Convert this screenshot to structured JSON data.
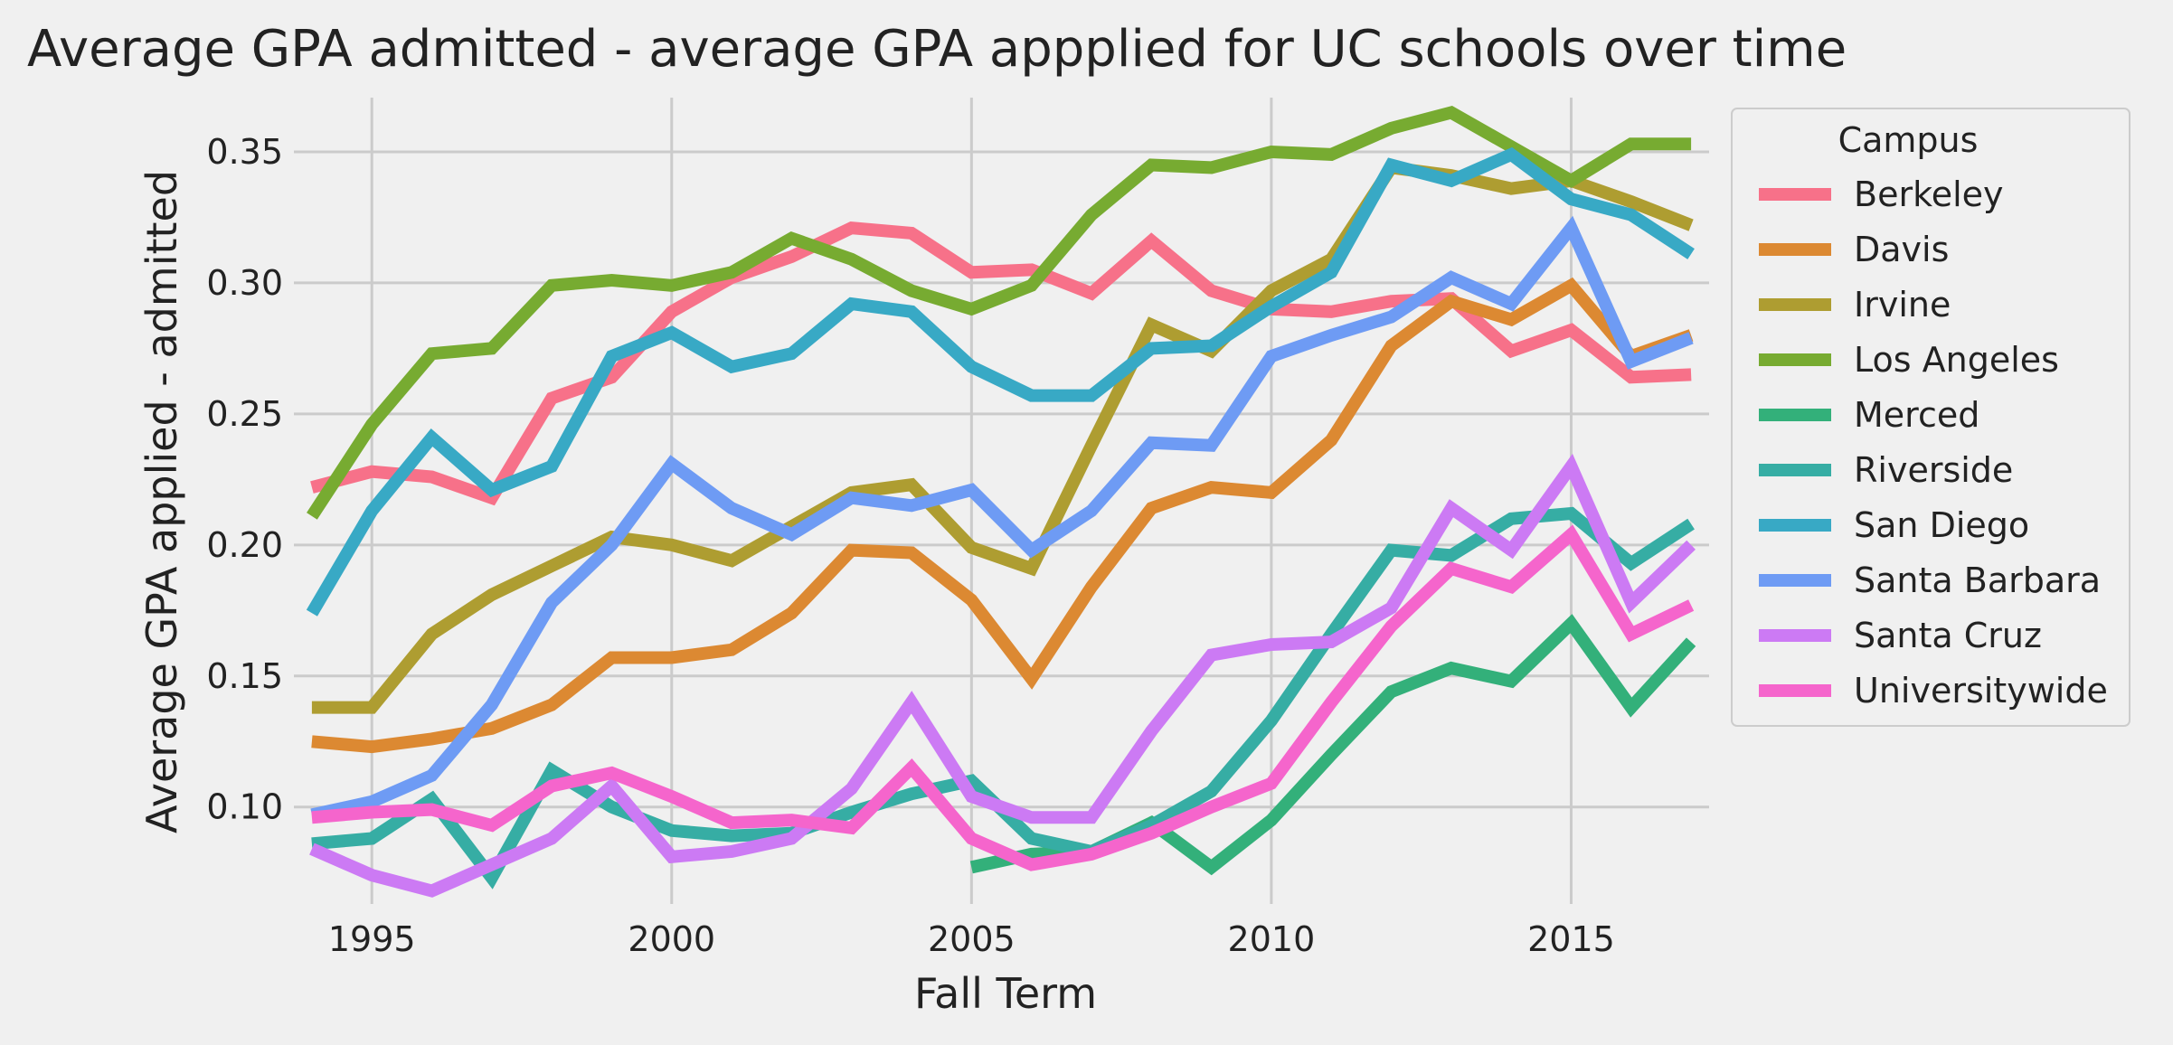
{
  "chart_data": {
    "type": "line",
    "title": "Average GPA admitted - average GPA appplied for UC schools over time",
    "xlabel": "Fall Term",
    "ylabel": "Average GPA applied - admitted",
    "xlim": [
      1993.7,
      2017.3
    ],
    "ylim": [
      0.063,
      0.37
    ],
    "x_ticks": [
      1995,
      2000,
      2005,
      2010,
      2015
    ],
    "y_ticks": [
      0.1,
      0.15,
      0.2,
      0.25,
      0.3,
      0.35
    ],
    "x_tick_labels": [
      "1995",
      "2000",
      "2005",
      "2010",
      "2015"
    ],
    "y_tick_labels": [
      "0.10",
      "0.15",
      "0.20",
      "0.25",
      "0.30",
      "0.35"
    ],
    "grid": true,
    "legend_title": "Campus",
    "legend_position": "outside-right",
    "x": [
      1994,
      1995,
      1996,
      1997,
      1998,
      1999,
      2000,
      2001,
      2002,
      2003,
      2004,
      2005,
      2006,
      2007,
      2008,
      2009,
      2010,
      2011,
      2012,
      2013,
      2014,
      2015,
      2016,
      2017
    ],
    "series": [
      {
        "name": "Berkeley",
        "color": "#f77189",
        "values": [
          0.222,
          0.228,
          0.226,
          0.218,
          0.256,
          0.264,
          0.289,
          0.302,
          0.31,
          0.321,
          0.319,
          0.304,
          0.305,
          0.296,
          0.316,
          0.297,
          0.29,
          0.289,
          0.293,
          0.294,
          0.274,
          0.282,
          0.264,
          0.265
        ]
      },
      {
        "name": "Davis",
        "color": "#dc8932",
        "values": [
          0.125,
          0.123,
          0.126,
          0.13,
          0.139,
          0.157,
          0.157,
          0.16,
          0.174,
          0.198,
          0.197,
          0.179,
          0.149,
          0.184,
          0.214,
          0.222,
          0.22,
          0.24,
          0.276,
          0.293,
          0.286,
          0.299,
          0.272,
          0.28
        ]
      },
      {
        "name": "Irvine",
        "color": "#ae9d31",
        "values": [
          0.138,
          0.138,
          0.166,
          0.181,
          0.192,
          0.203,
          0.2,
          0.194,
          0.207,
          0.22,
          0.223,
          0.199,
          0.191,
          0.238,
          0.284,
          0.274,
          0.297,
          0.309,
          0.344,
          0.341,
          0.336,
          0.339,
          0.331,
          0.322
        ]
      },
      {
        "name": "Los Angeles",
        "color": "#77ab31",
        "values": [
          0.211,
          0.246,
          0.273,
          0.275,
          0.299,
          0.301,
          0.299,
          0.304,
          0.317,
          0.309,
          0.297,
          0.29,
          0.299,
          0.326,
          0.345,
          0.344,
          0.35,
          0.349,
          0.359,
          0.365,
          0.352,
          0.339,
          0.353,
          0.353
        ]
      },
      {
        "name": "Merced",
        "color": "#33b07a",
        "values": [
          null,
          null,
          null,
          null,
          null,
          null,
          null,
          null,
          null,
          null,
          null,
          0.077,
          0.082,
          0.083,
          0.094,
          0.077,
          0.095,
          0.12,
          0.144,
          0.153,
          0.148,
          0.17,
          0.138,
          0.163
        ]
      },
      {
        "name": "Riverside",
        "color": "#36ada4",
        "values": [
          0.086,
          0.088,
          0.103,
          0.073,
          0.114,
          0.1,
          0.091,
          0.089,
          0.09,
          0.098,
          0.105,
          0.11,
          0.088,
          0.083,
          0.093,
          0.106,
          0.133,
          0.166,
          0.198,
          0.196,
          0.21,
          0.212,
          0.193,
          0.208
        ]
      },
      {
        "name": "San Diego",
        "color": "#38a9c5",
        "values": [
          0.174,
          0.213,
          0.241,
          0.221,
          0.23,
          0.272,
          0.281,
          0.268,
          0.273,
          0.292,
          0.289,
          0.268,
          0.257,
          0.257,
          0.275,
          0.276,
          0.291,
          0.304,
          0.345,
          0.339,
          0.349,
          0.332,
          0.326,
          0.311
        ]
      },
      {
        "name": "Santa Barbara",
        "color": "#6e9bf4",
        "values": [
          0.097,
          0.102,
          0.112,
          0.139,
          0.178,
          0.2,
          0.231,
          0.214,
          0.204,
          0.218,
          0.215,
          0.221,
          0.198,
          0.213,
          0.239,
          0.238,
          0.272,
          0.28,
          0.287,
          0.302,
          0.292,
          0.321,
          0.27,
          0.279
        ]
      },
      {
        "name": "Santa Cruz",
        "color": "#cc7af4",
        "values": [
          0.084,
          0.074,
          0.068,
          0.078,
          0.088,
          0.108,
          0.081,
          0.083,
          0.088,
          0.107,
          0.14,
          0.104,
          0.096,
          0.096,
          0.129,
          0.158,
          0.162,
          0.163,
          0.176,
          0.214,
          0.198,
          0.23,
          0.178,
          0.2
        ]
      },
      {
        "name": "Universitywide",
        "color": "#f565cc",
        "values": [
          0.096,
          0.098,
          0.099,
          0.093,
          0.108,
          0.113,
          0.104,
          0.094,
          0.095,
          0.092,
          0.115,
          0.088,
          0.078,
          0.082,
          0.09,
          0.1,
          0.109,
          0.14,
          0.169,
          0.191,
          0.184,
          0.204,
          0.166,
          0.177
        ]
      }
    ]
  }
}
